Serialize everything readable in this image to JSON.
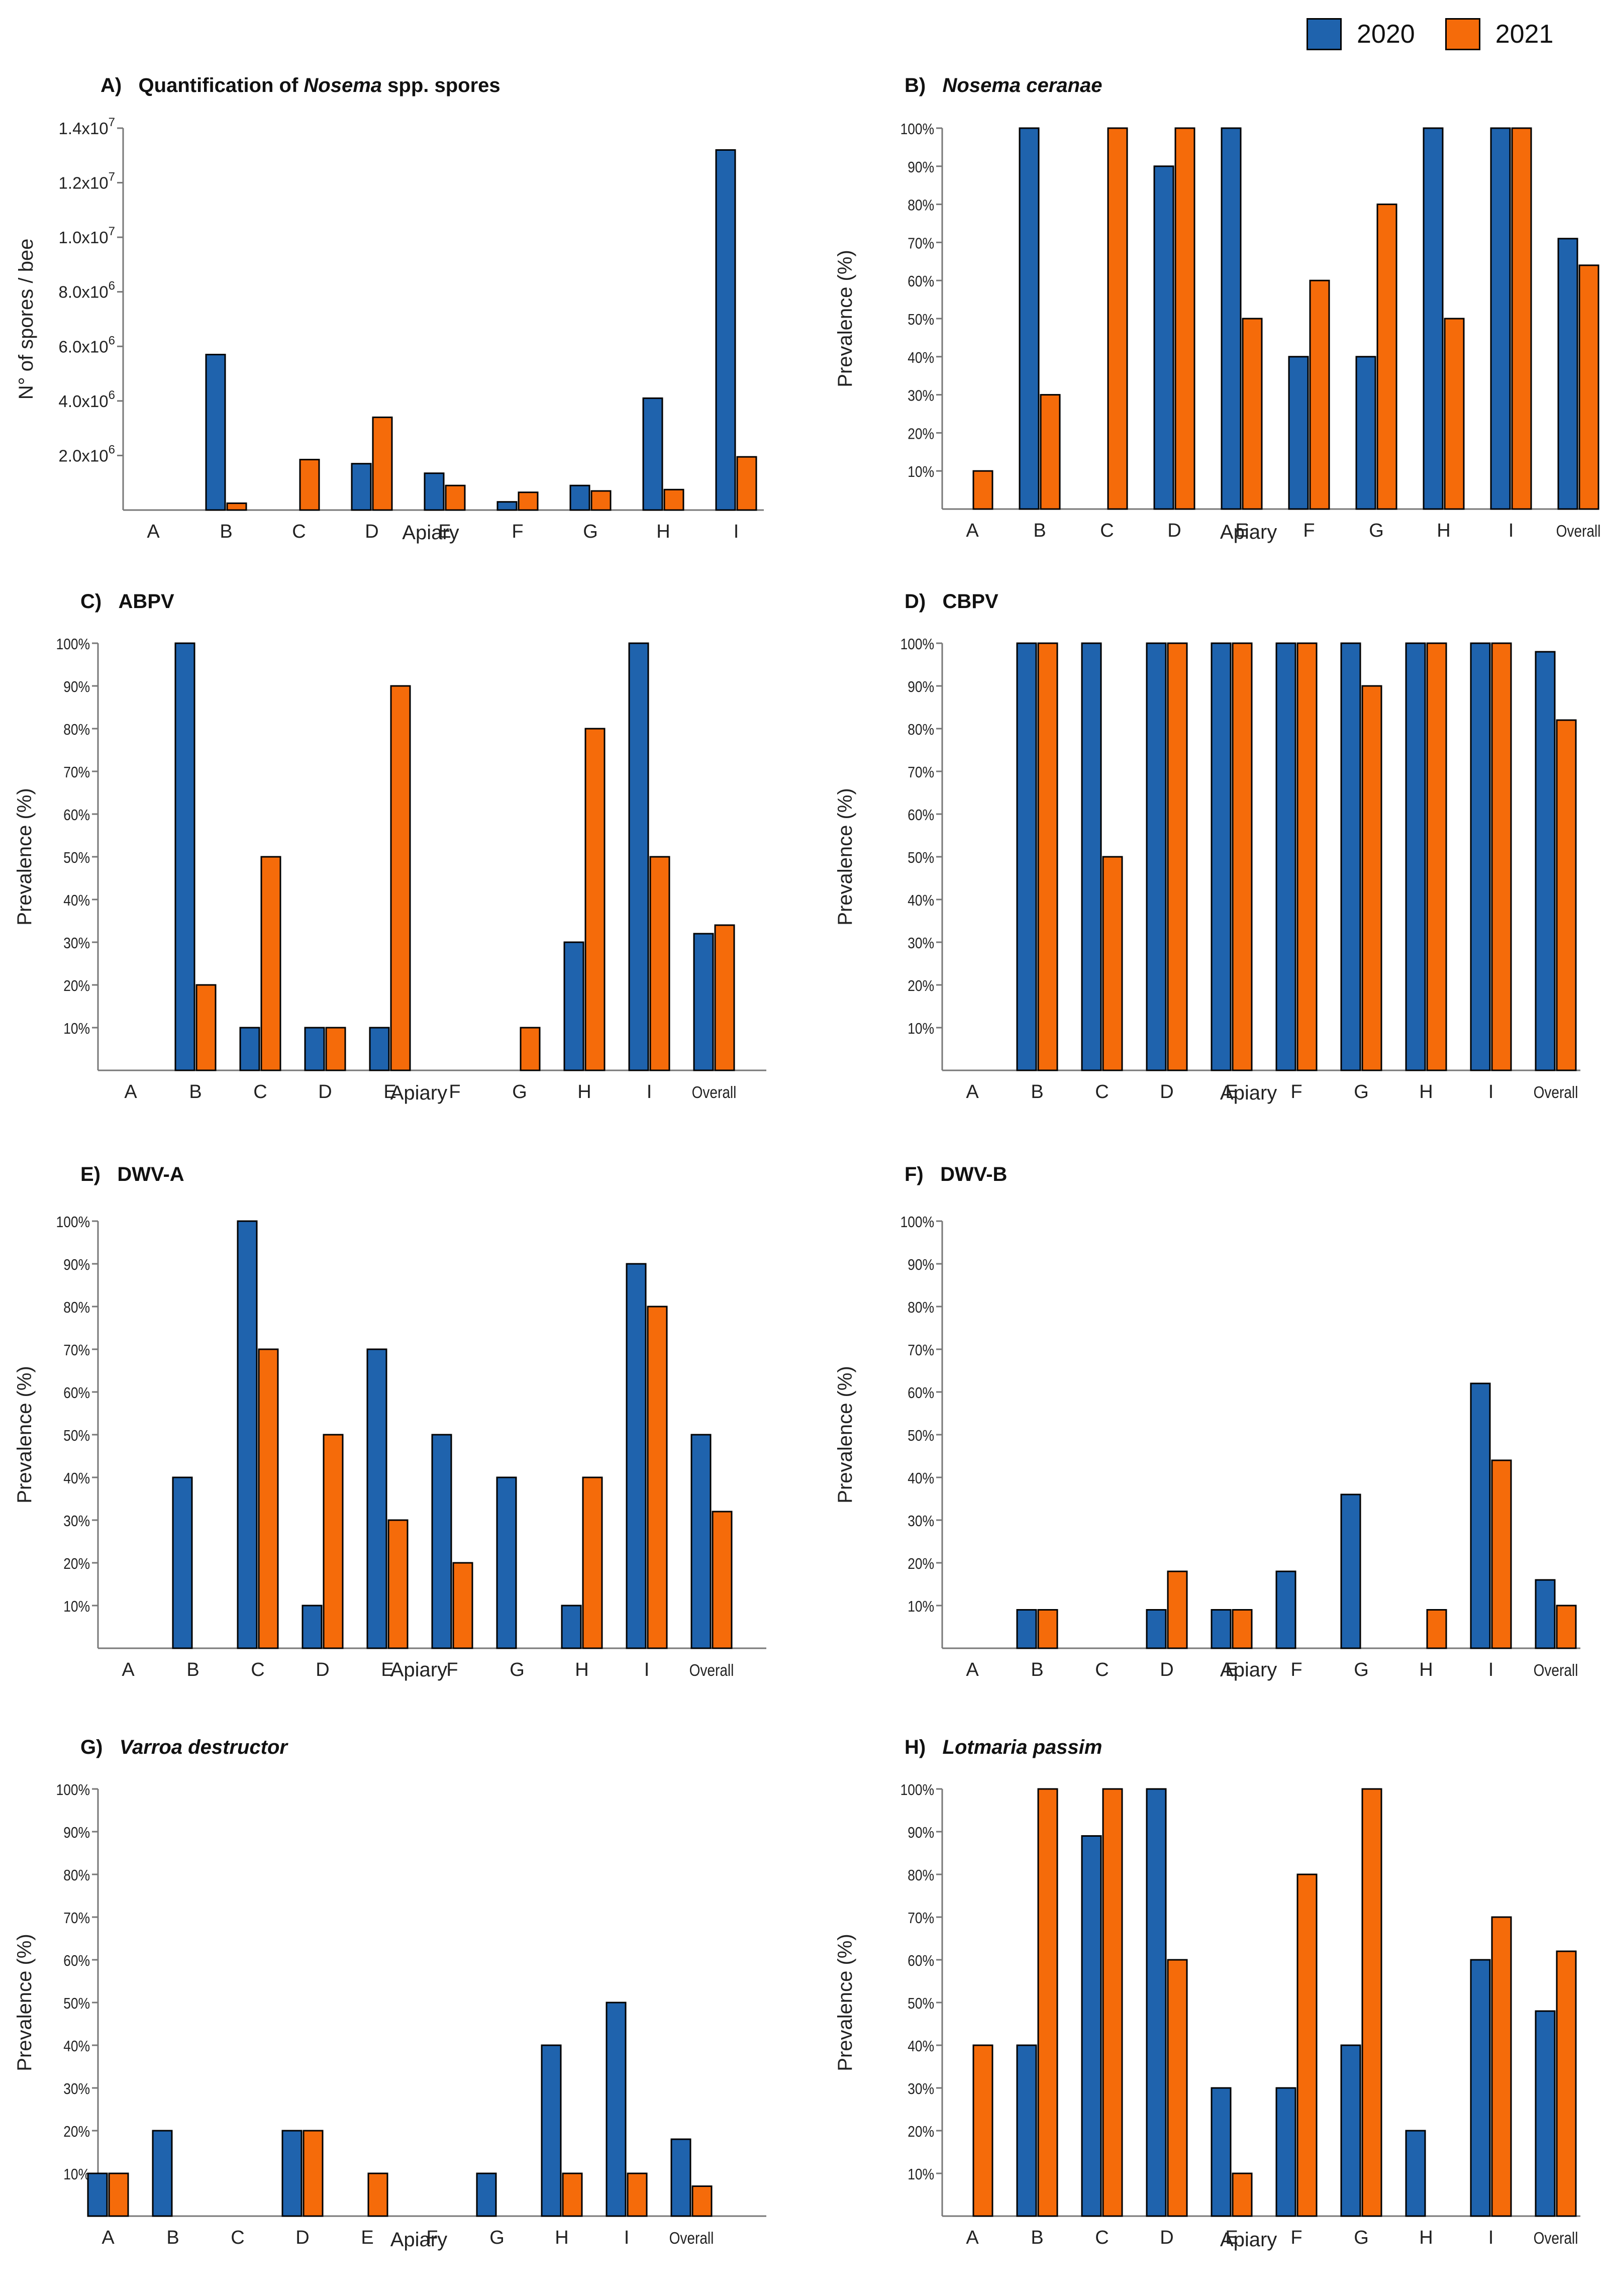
{
  "legend": {
    "series": [
      {
        "name": "2020",
        "color": "#1f63ad"
      },
      {
        "name": "2021",
        "color": "#f56b0a"
      }
    ]
  },
  "chart_data": [
    {
      "id": "A",
      "type": "bar",
      "title_prefix": "A)",
      "title_parts": [
        {
          "text": "Quantification of ",
          "italic": false
        },
        {
          "text": "Nosema",
          "italic": true
        },
        {
          "text": " spp. spores",
          "italic": false
        }
      ],
      "xlabel": "Apiary",
      "ylabel": "N° of spores / bee",
      "ylim": [
        0,
        14000000
      ],
      "categories": [
        "A",
        "B",
        "C",
        "D",
        "E",
        "F",
        "G",
        "H",
        "I"
      ],
      "yticks": [
        {
          "value": 2000000,
          "mant": "2.0x10",
          "exp": "6"
        },
        {
          "value": 4000000,
          "mant": "4.0x10",
          "exp": "6"
        },
        {
          "value": 6000000,
          "mant": "6.0x10",
          "exp": "6"
        },
        {
          "value": 8000000,
          "mant": "8.0x10",
          "exp": "6"
        },
        {
          "value": 10000000,
          "mant": "1.0x10",
          "exp": "7"
        },
        {
          "value": 12000000,
          "mant": "1.2x10",
          "exp": "7"
        },
        {
          "value": 14000000,
          "mant": "1.4x10",
          "exp": "7"
        }
      ],
      "series": [
        {
          "name": "2020",
          "values": [
            0,
            5700000,
            0,
            1700000,
            1350000,
            300000,
            900000,
            4100000,
            13200000
          ]
        },
        {
          "name": "2021",
          "values": [
            0,
            250000,
            1850000,
            3400000,
            900000,
            650000,
            700000,
            750000,
            1950000
          ]
        }
      ]
    },
    {
      "id": "B",
      "type": "bar",
      "title_prefix": "B)",
      "title_parts": [
        {
          "text": "Nosema ceranae",
          "italic": true
        }
      ],
      "xlabel": "Apiary",
      "ylabel": "Prevalence (%)",
      "ylim": [
        0,
        100
      ],
      "categories": [
        "A",
        "B",
        "C",
        "D",
        "E",
        "F",
        "G",
        "H",
        "I",
        "Overall"
      ],
      "yticks": [
        "10%",
        "20%",
        "30%",
        "40%",
        "50%",
        "60%",
        "70%",
        "80%",
        "90%",
        "100%"
      ],
      "series": [
        {
          "name": "2020",
          "values": [
            0,
            100,
            0,
            90,
            100,
            40,
            40,
            100,
            100,
            71
          ]
        },
        {
          "name": "2021",
          "values": [
            10,
            30,
            100,
            100,
            50,
            60,
            80,
            50,
            100,
            64
          ]
        }
      ]
    },
    {
      "id": "C",
      "type": "bar",
      "title_prefix": "C)",
      "title_parts": [
        {
          "text": "ABPV",
          "italic": false
        }
      ],
      "xlabel": "Apiary",
      "ylabel": "Prevalence (%)",
      "ylim": [
        0,
        100
      ],
      "categories": [
        "A",
        "B",
        "C",
        "D",
        "E",
        "F",
        "G",
        "H",
        "I",
        "Overall"
      ],
      "yticks": [
        "10%",
        "20%",
        "30%",
        "40%",
        "50%",
        "60%",
        "70%",
        "80%",
        "90%",
        "100%"
      ],
      "series": [
        {
          "name": "2020",
          "values": [
            0,
            100,
            10,
            10,
            10,
            0,
            0,
            30,
            100,
            32
          ]
        },
        {
          "name": "2021",
          "values": [
            0,
            20,
            50,
            10,
            90,
            0,
            10,
            80,
            50,
            34
          ]
        }
      ]
    },
    {
      "id": "D",
      "type": "bar",
      "title_prefix": "D)",
      "title_parts": [
        {
          "text": "CBPV",
          "italic": false
        }
      ],
      "xlabel": "Apiary",
      "ylabel": "Prevalence (%)",
      "ylim": [
        0,
        100
      ],
      "categories": [
        "A",
        "B",
        "C",
        "D",
        "E",
        "F",
        "G",
        "H",
        "I",
        "Overall"
      ],
      "yticks": [
        "10%",
        "20%",
        "30%",
        "40%",
        "50%",
        "60%",
        "70%",
        "80%",
        "90%",
        "100%"
      ],
      "series": [
        {
          "name": "2020",
          "values": [
            0,
            100,
            100,
            100,
            100,
            100,
            100,
            100,
            100,
            98
          ]
        },
        {
          "name": "2021",
          "values": [
            0,
            100,
            50,
            100,
            100,
            100,
            90,
            100,
            100,
            82
          ]
        }
      ]
    },
    {
      "id": "E",
      "type": "bar",
      "title_prefix": "E)",
      "title_parts": [
        {
          "text": "DWV-A",
          "italic": false
        }
      ],
      "xlabel": "Apiary",
      "ylabel": "Prevalence (%)",
      "ylim": [
        0,
        100
      ],
      "categories": [
        "A",
        "B",
        "C",
        "D",
        "E",
        "F",
        "G",
        "H",
        "I",
        "Overall"
      ],
      "yticks": [
        "10%",
        "20%",
        "30%",
        "40%",
        "50%",
        "60%",
        "70%",
        "80%",
        "90%",
        "100%"
      ],
      "series": [
        {
          "name": "2020",
          "values": [
            0,
            40,
            100,
            10,
            70,
            50,
            40,
            10,
            90,
            50
          ]
        },
        {
          "name": "2021",
          "values": [
            0,
            0,
            70,
            50,
            30,
            20,
            0,
            40,
            80,
            32
          ]
        }
      ]
    },
    {
      "id": "F",
      "type": "bar",
      "title_prefix": "F)",
      "title_parts": [
        {
          "text": "DWV-B",
          "italic": false
        }
      ],
      "xlabel": "Apiary",
      "ylabel": "Prevalence (%)",
      "ylim": [
        0,
        100
      ],
      "categories": [
        "A",
        "B",
        "C",
        "D",
        "E",
        "F",
        "G",
        "H",
        "I",
        "Overall"
      ],
      "yticks": [
        "10%",
        "20%",
        "30%",
        "40%",
        "50%",
        "60%",
        "70%",
        "80%",
        "90%",
        "100%"
      ],
      "series": [
        {
          "name": "2020",
          "values": [
            0,
            9,
            0,
            9,
            9,
            18,
            36,
            0,
            62,
            16
          ]
        },
        {
          "name": "2021",
          "values": [
            0,
            9,
            0,
            18,
            9,
            0,
            0,
            9,
            44,
            10
          ]
        }
      ]
    },
    {
      "id": "G",
      "type": "bar",
      "title_prefix": "G)",
      "title_parts": [
        {
          "text": "Varroa destructor",
          "italic": true
        }
      ],
      "xlabel": "Apiary",
      "ylabel": "Prevalence (%)",
      "ylim": [
        0,
        100
      ],
      "categories": [
        "A",
        "B",
        "C",
        "D",
        "E",
        "F",
        "G",
        "H",
        "I",
        "Overall"
      ],
      "yticks": [
        "10%",
        "20%",
        "30%",
        "40%",
        "50%",
        "60%",
        "70%",
        "80%",
        "90%",
        "100%"
      ],
      "series": [
        {
          "name": "2020",
          "values": [
            10,
            20,
            0,
            20,
            0,
            0,
            10,
            40,
            50,
            18
          ]
        },
        {
          "name": "2021",
          "values": [
            10,
            0,
            0,
            20,
            10,
            0,
            0,
            10,
            10,
            7
          ]
        }
      ]
    },
    {
      "id": "H",
      "type": "bar",
      "title_prefix": "H)",
      "title_parts": [
        {
          "text": "Lotmaria passim",
          "italic": true
        }
      ],
      "xlabel": "Apiary",
      "ylabel": "Prevalence (%)",
      "ylim": [
        0,
        100
      ],
      "categories": [
        "A",
        "B",
        "C",
        "D",
        "E",
        "F",
        "G",
        "H",
        "I",
        "Overall"
      ],
      "yticks": [
        "10%",
        "20%",
        "30%",
        "40%",
        "50%",
        "60%",
        "70%",
        "80%",
        "90%",
        "100%"
      ],
      "series": [
        {
          "name": "2020",
          "values": [
            0,
            40,
            89,
            100,
            30,
            30,
            40,
            20,
            60,
            48
          ]
        },
        {
          "name": "2021",
          "values": [
            40,
            100,
            100,
            60,
            10,
            80,
            100,
            0,
            70,
            62
          ]
        }
      ]
    }
  ]
}
